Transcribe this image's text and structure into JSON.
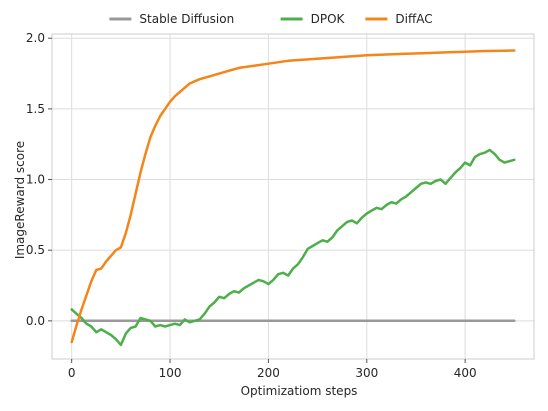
{
  "chart_data": {
    "type": "line",
    "xlabel": "Optimizatiom steps",
    "ylabel": "ImageReward score",
    "xlim": [
      -20,
      470
    ],
    "ylim": [
      -0.27,
      2.03
    ],
    "x_ticks": [
      0,
      100,
      200,
      300,
      400
    ],
    "y_ticks": [
      0.0,
      0.5,
      1.0,
      1.5,
      2.0
    ],
    "x_tick_labels": [
      "0",
      "100",
      "200",
      "300",
      "400"
    ],
    "y_tick_labels": [
      "0.0",
      "0.5",
      "1.0",
      "1.5",
      "2.0"
    ],
    "grid": true,
    "legend_position": "top-center",
    "series": [
      {
        "name": "Stable Diffusion",
        "color": "#999999",
        "x": [
          0,
          450
        ],
        "y": [
          0.0,
          0.0
        ]
      },
      {
        "name": "DPOK",
        "color": "#4daf4a",
        "x": [
          0,
          5,
          10,
          15,
          20,
          25,
          30,
          35,
          40,
          45,
          50,
          55,
          60,
          65,
          70,
          75,
          80,
          85,
          90,
          95,
          100,
          105,
          110,
          115,
          120,
          125,
          130,
          135,
          140,
          145,
          150,
          155,
          160,
          165,
          170,
          175,
          180,
          185,
          190,
          195,
          200,
          205,
          210,
          215,
          220,
          225,
          230,
          235,
          240,
          245,
          250,
          255,
          260,
          265,
          270,
          275,
          280,
          285,
          290,
          295,
          300,
          305,
          310,
          315,
          320,
          325,
          330,
          335,
          340,
          345,
          350,
          355,
          360,
          365,
          370,
          375,
          380,
          385,
          390,
          395,
          400,
          405,
          410,
          415,
          420,
          425,
          430,
          435,
          440,
          445,
          450
        ],
        "y": [
          0.08,
          0.05,
          0.02,
          -0.02,
          -0.04,
          -0.08,
          -0.06,
          -0.08,
          -0.1,
          -0.13,
          -0.17,
          -0.09,
          -0.05,
          -0.04,
          0.02,
          0.01,
          0.0,
          -0.04,
          -0.03,
          -0.04,
          -0.03,
          -0.02,
          -0.03,
          0.01,
          -0.01,
          0.0,
          0.01,
          0.05,
          0.1,
          0.13,
          0.17,
          0.16,
          0.19,
          0.21,
          0.2,
          0.23,
          0.25,
          0.27,
          0.29,
          0.28,
          0.26,
          0.29,
          0.33,
          0.34,
          0.32,
          0.37,
          0.4,
          0.45,
          0.51,
          0.53,
          0.55,
          0.57,
          0.56,
          0.59,
          0.64,
          0.67,
          0.7,
          0.71,
          0.69,
          0.73,
          0.76,
          0.78,
          0.8,
          0.79,
          0.82,
          0.84,
          0.83,
          0.86,
          0.88,
          0.91,
          0.94,
          0.97,
          0.98,
          0.97,
          0.99,
          1.0,
          0.97,
          1.01,
          1.05,
          1.08,
          1.12,
          1.1,
          1.16,
          1.18,
          1.19,
          1.21,
          1.18,
          1.14,
          1.12,
          1.13,
          1.14
        ]
      },
      {
        "name": "DiffAC",
        "color": "#f58518",
        "x": [
          0,
          5,
          10,
          15,
          20,
          25,
          30,
          35,
          40,
          45,
          50,
          55,
          60,
          65,
          70,
          75,
          80,
          85,
          90,
          95,
          100,
          105,
          110,
          115,
          120,
          130,
          140,
          150,
          160,
          170,
          180,
          190,
          200,
          220,
          240,
          260,
          280,
          300,
          320,
          340,
          360,
          380,
          400,
          420,
          440,
          450
        ],
        "y": [
          -0.15,
          -0.03,
          0.08,
          0.18,
          0.28,
          0.36,
          0.37,
          0.42,
          0.46,
          0.5,
          0.52,
          0.62,
          0.75,
          0.9,
          1.05,
          1.18,
          1.3,
          1.38,
          1.45,
          1.5,
          1.55,
          1.59,
          1.62,
          1.65,
          1.68,
          1.71,
          1.73,
          1.75,
          1.77,
          1.79,
          1.8,
          1.81,
          1.82,
          1.84,
          1.85,
          1.86,
          1.87,
          1.88,
          1.885,
          1.89,
          1.895,
          1.9,
          1.905,
          1.91,
          1.912,
          1.913
        ]
      }
    ]
  }
}
